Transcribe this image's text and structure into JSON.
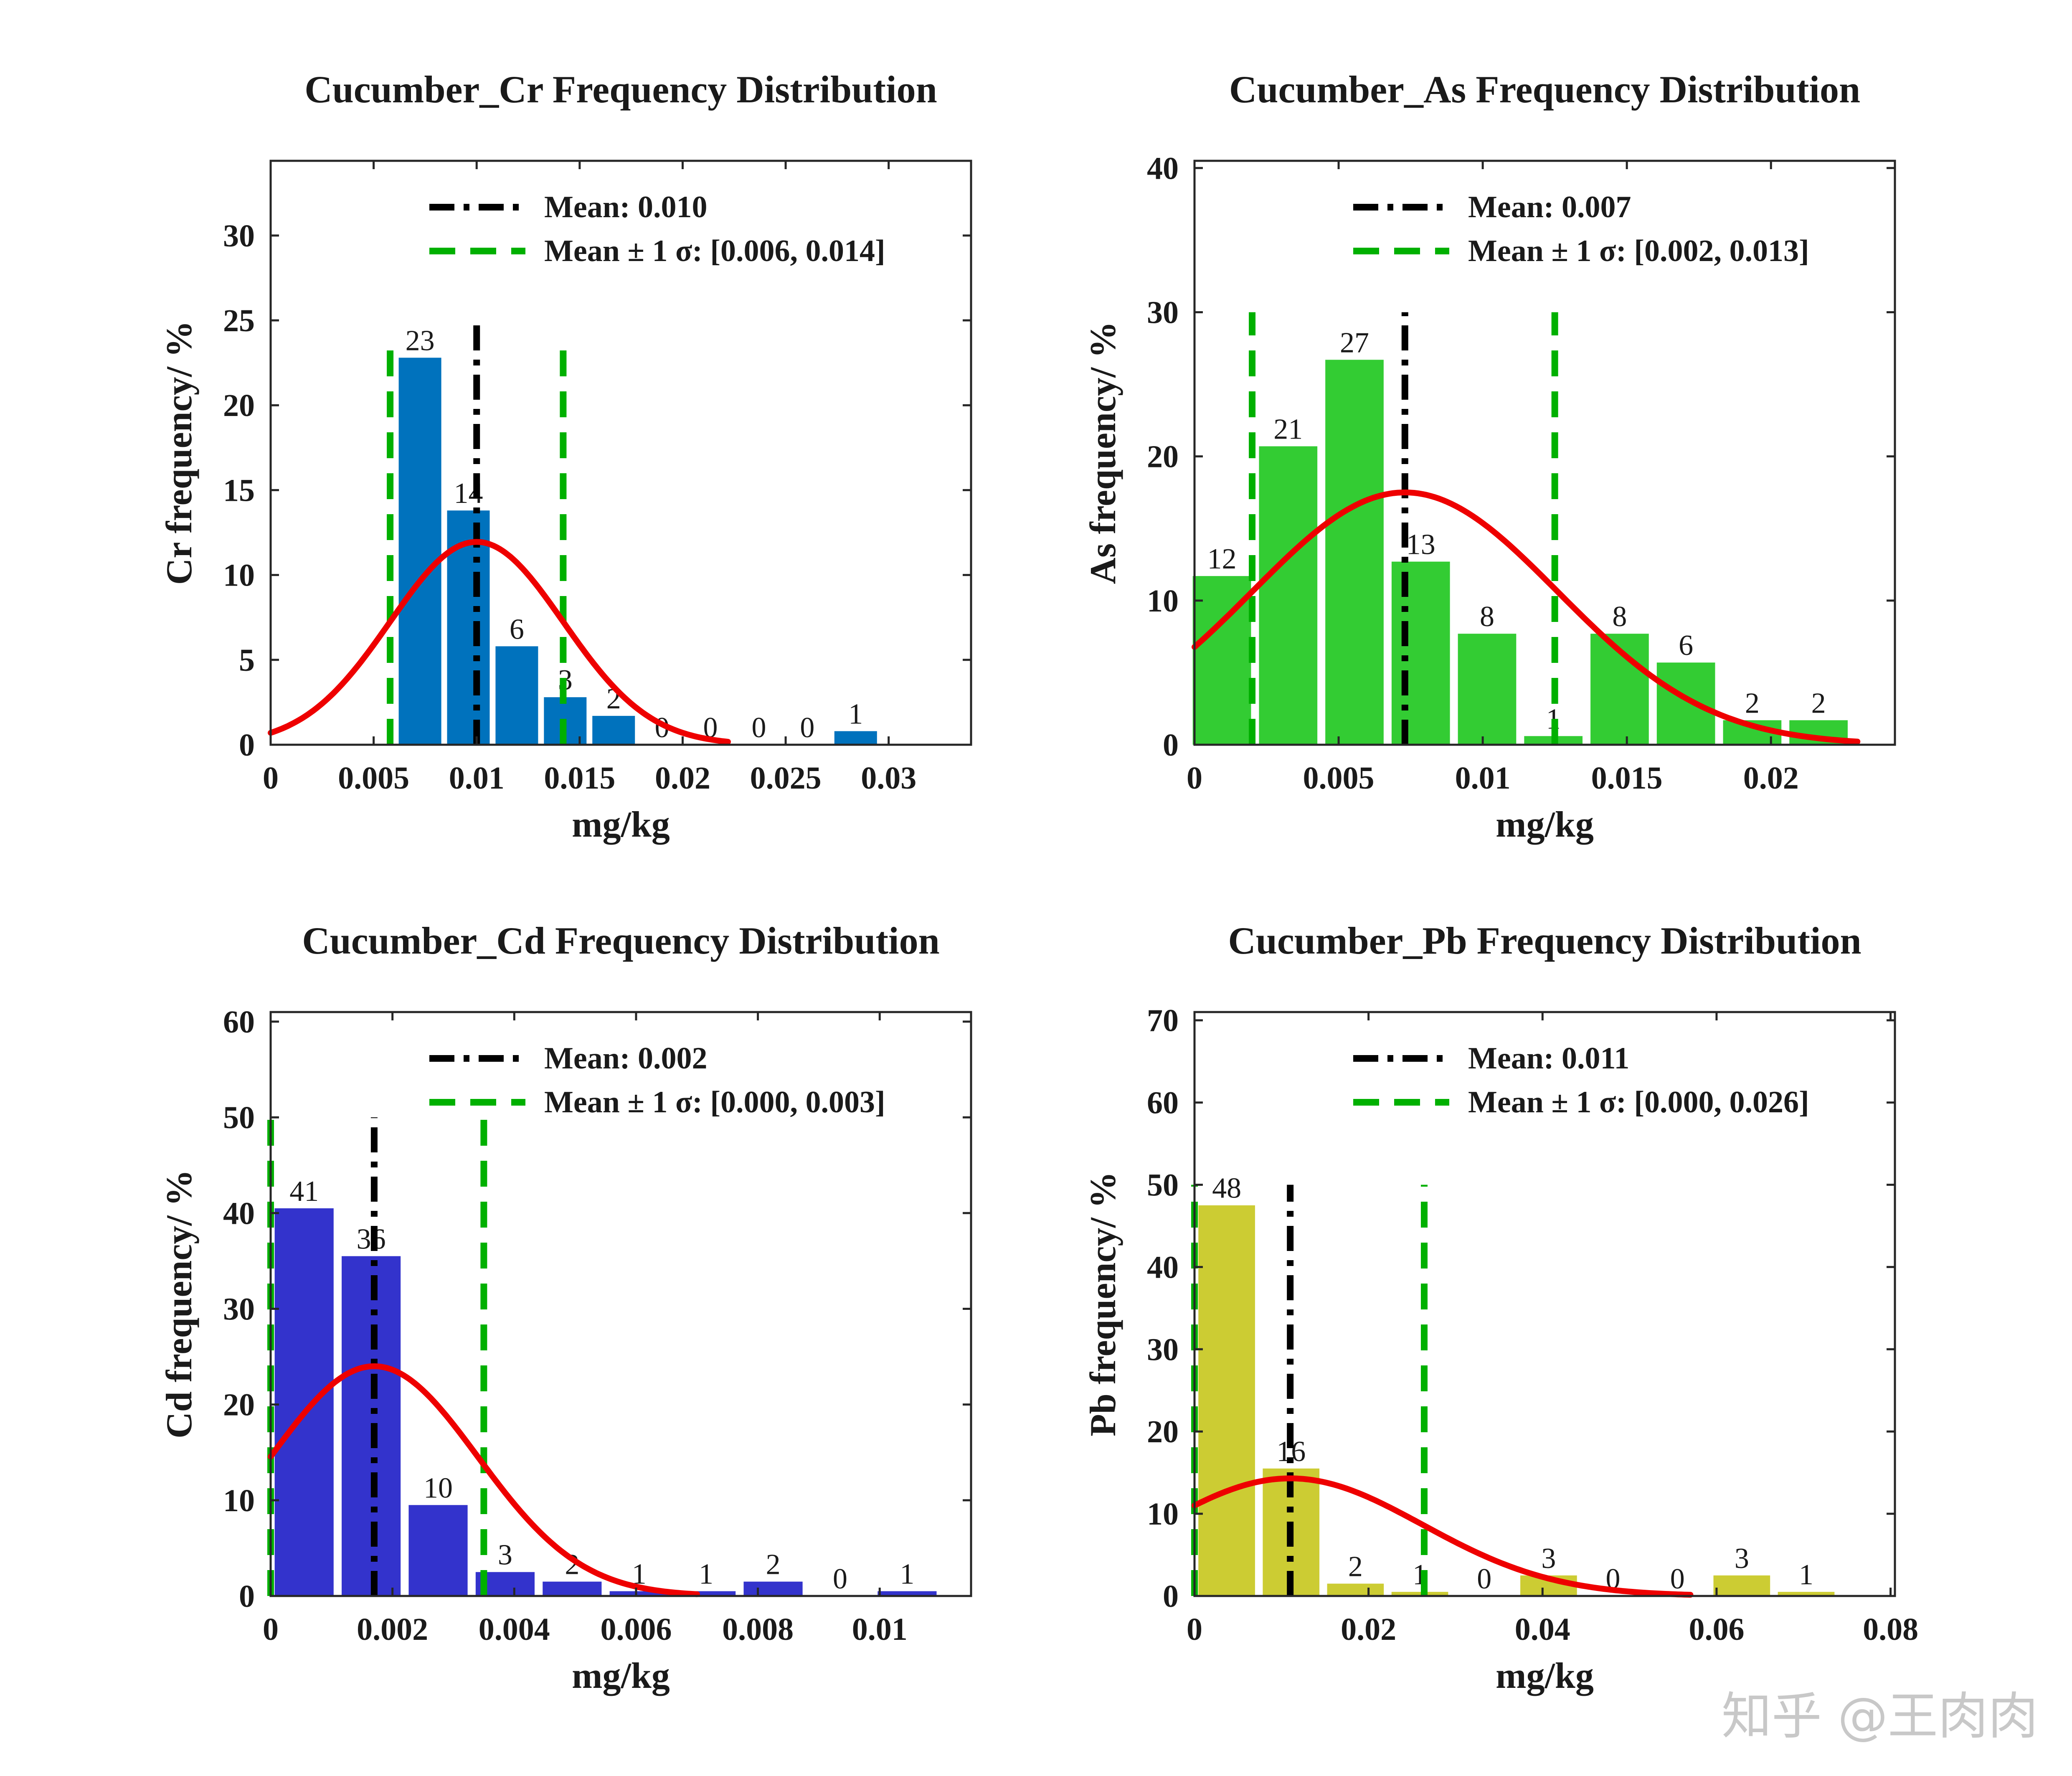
{
  "watermark": "知乎 @王肉肉",
  "chart_data": [
    {
      "type": "bar",
      "title": "Cucumber_Cr Frequency Distribution",
      "xlabel": "mg/kg",
      "ylabel": "Cr frequency/ %",
      "color": "#0072bd",
      "xlim": [
        0,
        0.034
      ],
      "ylim": [
        0,
        34.4
      ],
      "xticks": [
        0,
        0.005,
        0.01,
        0.015,
        0.02,
        0.025,
        0.03
      ],
      "xtick_labels": [
        "0",
        "0.005",
        "0.01",
        "0.015",
        "0.02",
        "0.025",
        "0.03"
      ],
      "yticks": [
        0,
        5,
        10,
        15,
        20,
        25,
        30
      ],
      "ytick_labels": [
        "0",
        "5",
        "10",
        "15",
        "20",
        "25",
        "30"
      ],
      "bin_width": 0.00235,
      "bars": [
        {
          "x": 0.00725,
          "value": 22.8,
          "label": "23"
        },
        {
          "x": 0.0096,
          "value": 13.8,
          "label": "14"
        },
        {
          "x": 0.01195,
          "value": 5.8,
          "label": "6"
        },
        {
          "x": 0.0143,
          "value": 2.8,
          "label": "3"
        },
        {
          "x": 0.01665,
          "value": 1.7,
          "label": "2"
        },
        {
          "x": 0.019,
          "value": 0,
          "label": "0"
        },
        {
          "x": 0.02135,
          "value": 0,
          "label": "0"
        },
        {
          "x": 0.0237,
          "value": 0,
          "label": "0"
        },
        {
          "x": 0.02605,
          "value": 0,
          "label": "0"
        },
        {
          "x": 0.0284,
          "value": 0.8,
          "label": "1"
        }
      ],
      "mean": 0.01,
      "sigma_band": [
        0.0058,
        0.0142
      ],
      "mean_line_top": 25,
      "sigma_line_top": 23.8,
      "fit_curve": {
        "mu": 0.01,
        "sigma": 0.0042,
        "peak": 11.95,
        "x_range": [
          0,
          0.0222
        ]
      },
      "legend": [
        {
          "style": "dashdot",
          "color": "#000000",
          "label": "Mean: 0.010"
        },
        {
          "style": "dashed",
          "color": "#00b000",
          "label": "Mean ± 1 σ: [0.006, 0.014]"
        }
      ]
    },
    {
      "type": "bar",
      "title": "Cucumber_As Frequency Distribution",
      "xlabel": "mg/kg",
      "ylabel": "As frequency/ %",
      "color": "#33cc33",
      "xlim": [
        0,
        0.0243
      ],
      "ylim": [
        0,
        40.5
      ],
      "xticks": [
        0,
        0.005,
        0.01,
        0.015,
        0.02
      ],
      "xtick_labels": [
        "0",
        "0.005",
        "0.01",
        "0.015",
        "0.02"
      ],
      "yticks": [
        0,
        10,
        20,
        30,
        40
      ],
      "ytick_labels": [
        "0",
        "10",
        "20",
        "30",
        "40"
      ],
      "bin_width": 0.0023,
      "bars": [
        {
          "x": 0.00095,
          "value": 11.7,
          "label": "12"
        },
        {
          "x": 0.00325,
          "value": 20.7,
          "label": "21"
        },
        {
          "x": 0.00555,
          "value": 26.7,
          "label": "27"
        },
        {
          "x": 0.00785,
          "value": 12.7,
          "label": "13"
        },
        {
          "x": 0.01015,
          "value": 7.7,
          "label": "8"
        },
        {
          "x": 0.01245,
          "value": 0.6,
          "label": "1"
        },
        {
          "x": 0.01475,
          "value": 7.7,
          "label": "8"
        },
        {
          "x": 0.01705,
          "value": 5.7,
          "label": "6"
        },
        {
          "x": 0.01935,
          "value": 1.7,
          "label": "2"
        },
        {
          "x": 0.02165,
          "value": 1.7,
          "label": "2"
        }
      ],
      "mean": 0.0073,
      "sigma_band": [
        0.002,
        0.0125
      ],
      "mean_line_top": 30,
      "sigma_line_top": 30,
      "fit_curve": {
        "mu": 0.0073,
        "sigma": 0.0053,
        "peak": 17.5,
        "x_range": [
          0,
          0.023
        ]
      },
      "legend": [
        {
          "style": "dashdot",
          "color": "#000000",
          "label": "Mean: 0.007"
        },
        {
          "style": "dashed",
          "color": "#00b000",
          "label": "Mean ± 1 σ: [0.002, 0.013]"
        }
      ]
    },
    {
      "type": "bar",
      "title": "Cucumber_Cd Frequency Distribution",
      "xlabel": "mg/kg",
      "ylabel": "Cd frequency/ %",
      "color": "#3333cc",
      "xlim": [
        0,
        0.0115
      ],
      "ylim": [
        0,
        61
      ],
      "xticks": [
        0,
        0.002,
        0.004,
        0.006,
        0.008,
        0.01
      ],
      "xtick_labels": [
        "0",
        "0.002",
        "0.004",
        "0.006",
        "0.008",
        "0.01"
      ],
      "yticks": [
        0,
        10,
        20,
        30,
        40,
        50,
        60
      ],
      "ytick_labels": [
        "0",
        "10",
        "20",
        "30",
        "40",
        "50",
        "60"
      ],
      "bin_width": 0.0011,
      "bars": [
        {
          "x": 0.00055,
          "value": 40.5,
          "label": "41"
        },
        {
          "x": 0.00165,
          "value": 35.5,
          "label": "36"
        },
        {
          "x": 0.00275,
          "value": 9.5,
          "label": "10"
        },
        {
          "x": 0.00385,
          "value": 2.5,
          "label": "3"
        },
        {
          "x": 0.00495,
          "value": 1.5,
          "label": "2"
        },
        {
          "x": 0.00605,
          "value": 0.5,
          "label": "1"
        },
        {
          "x": 0.00715,
          "value": 0.5,
          "label": "1"
        },
        {
          "x": 0.00825,
          "value": 1.5,
          "label": "2"
        },
        {
          "x": 0.00935,
          "value": 0,
          "label": "0"
        },
        {
          "x": 0.01045,
          "value": 0.5,
          "label": "1"
        }
      ],
      "mean": 0.0017,
      "sigma_band": [
        0.0,
        0.0035
      ],
      "mean_line_top": 50,
      "sigma_line_top": 50,
      "fit_curve": {
        "mu": 0.0017,
        "sigma": 0.0017,
        "peak": 24,
        "x_range": [
          0,
          0.007
        ]
      },
      "legend": [
        {
          "style": "dashdot",
          "color": "#000000",
          "label": "Mean: 0.002"
        },
        {
          "style": "dashed",
          "color": "#00b000",
          "label": "Mean ± 1 σ: [0.000, 0.003]"
        }
      ]
    },
    {
      "type": "bar",
      "title": "Cucumber_Pb Frequency Distribution",
      "xlabel": "mg/kg",
      "ylabel": "Pb frequency/ %",
      "color": "#cccc33",
      "xlim": [
        0,
        0.0805
      ],
      "ylim": [
        0,
        71
      ],
      "xticks": [
        0,
        0.02,
        0.04,
        0.06,
        0.08
      ],
      "xtick_labels": [
        "0",
        "0.02",
        "0.04",
        "0.06",
        "0.08"
      ],
      "yticks": [
        0,
        10,
        20,
        30,
        40,
        50,
        60,
        70
      ],
      "ytick_labels": [
        "0",
        "10",
        "20",
        "30",
        "40",
        "50",
        "60",
        "70"
      ],
      "bin_width": 0.0074,
      "bars": [
        {
          "x": 0.0037,
          "value": 47.5,
          "label": "48"
        },
        {
          "x": 0.0111,
          "value": 15.5,
          "label": "16"
        },
        {
          "x": 0.0185,
          "value": 1.5,
          "label": "2"
        },
        {
          "x": 0.0259,
          "value": 0.5,
          "label": "1"
        },
        {
          "x": 0.0333,
          "value": 0,
          "label": "0"
        },
        {
          "x": 0.0407,
          "value": 2.5,
          "label": "3"
        },
        {
          "x": 0.0481,
          "value": 0,
          "label": "0"
        },
        {
          "x": 0.0555,
          "value": 0,
          "label": "0"
        },
        {
          "x": 0.0629,
          "value": 2.5,
          "label": "3"
        },
        {
          "x": 0.0703,
          "value": 0.5,
          "label": "1"
        }
      ],
      "mean": 0.011,
      "sigma_band": [
        0.0,
        0.0264
      ],
      "mean_line_top": 50,
      "sigma_line_top": 50,
      "fit_curve": {
        "mu": 0.011,
        "sigma": 0.0152,
        "peak": 14.3,
        "x_range": [
          0,
          0.057
        ]
      },
      "legend": [
        {
          "style": "dashdot",
          "color": "#000000",
          "label": "Mean: 0.011"
        },
        {
          "style": "dashed",
          "color": "#00b000",
          "label": "Mean ± 1 σ: [0.000, 0.026]"
        }
      ]
    }
  ]
}
